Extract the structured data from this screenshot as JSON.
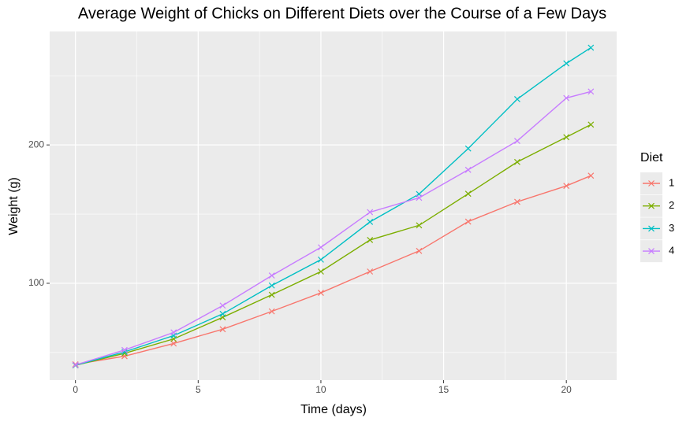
{
  "chart_data": {
    "type": "line",
    "title": "Average Weight of Chicks on Different Diets over the Course of a Few Days",
    "x_label": "Time (days)",
    "y_label": "Weight (g)",
    "x": [
      0,
      2,
      4,
      6,
      8,
      10,
      12,
      14,
      16,
      18,
      20,
      21
    ],
    "series": [
      {
        "name": "1",
        "color": "#F8766D",
        "values": [
          41.4,
          47.3,
          56.5,
          66.8,
          79.7,
          93.1,
          108.5,
          123.4,
          144.6,
          158.9,
          170.4,
          177.8
        ]
      },
      {
        "name": "2",
        "color": "#7CAE00",
        "values": [
          40.7,
          49.4,
          59.8,
          75.4,
          91.7,
          108.5,
          131.3,
          141.9,
          164.7,
          187.7,
          205.6,
          214.7
        ]
      },
      {
        "name": "3",
        "color": "#00BFC4",
        "values": [
          40.8,
          50.4,
          62.2,
          77.9,
          98.4,
          117.1,
          144.4,
          164.5,
          197.4,
          233.1,
          258.9,
          270.3
        ]
      },
      {
        "name": "4",
        "color": "#C77CFF",
        "values": [
          41.0,
          51.8,
          64.5,
          83.9,
          105.6,
          126.0,
          151.4,
          161.8,
          182.0,
          202.9,
          233.9,
          238.6
        ]
      }
    ],
    "legend_title": "Diet",
    "legend_position": "right",
    "xlim": [
      -1.05,
      22.05
    ],
    "xticks": [
      0,
      5,
      10,
      15,
      20
    ],
    "xminor": [
      2.5,
      7.5,
      12.5,
      17.5
    ],
    "ylim": [
      30,
      282
    ],
    "yticks": [
      100,
      200
    ],
    "yminor": [
      50,
      150,
      250
    ],
    "grid": true
  }
}
